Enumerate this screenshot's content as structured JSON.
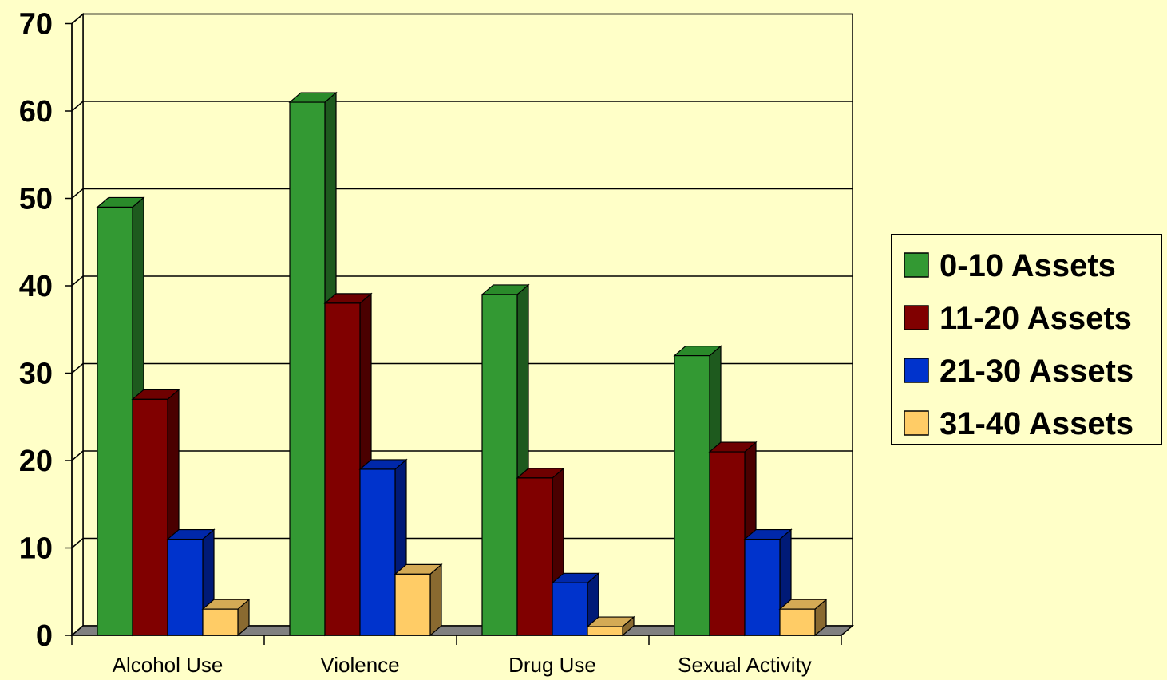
{
  "chart_data": {
    "type": "bar",
    "style": "3d-clustered-column",
    "categories": [
      "Alcohol Use",
      "Violence",
      "Drug Use",
      "Sexual Activity"
    ],
    "series": [
      {
        "name": "0-10 Assets",
        "values": [
          49,
          61,
          39,
          32
        ],
        "color": "#339933",
        "side": "#1e5a1e",
        "top": "#2a8a2a"
      },
      {
        "name": "11-20 Assets",
        "values": [
          27,
          38,
          18,
          21
        ],
        "color": "#800000",
        "side": "#4a0000",
        "top": "#6e0000"
      },
      {
        "name": "21-30 Assets",
        "values": [
          11,
          19,
          6,
          11
        ],
        "color": "#0033cc",
        "side": "#001a77",
        "top": "#0028aa"
      },
      {
        "name": "31-40 Assets",
        "values": [
          3,
          7,
          1,
          3
        ],
        "color": "#ffcc66",
        "side": "#8a6a30",
        "top": "#d4aa55"
      }
    ],
    "ylim": [
      0,
      70
    ],
    "yticks": [
      0,
      10,
      20,
      30,
      40,
      50,
      60,
      70
    ],
    "title": "",
    "xlabel": "",
    "ylabel": "",
    "grid": true,
    "legend": "right"
  }
}
